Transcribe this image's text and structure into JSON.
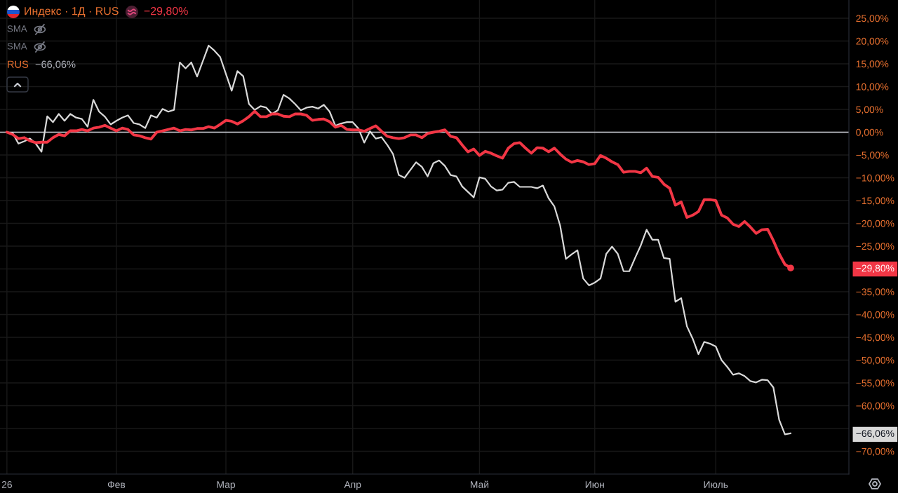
{
  "chart_data": {
    "type": "line",
    "categories": [
      "26",
      null,
      null,
      null,
      null,
      null,
      null,
      null,
      null,
      null,
      null,
      null,
      null,
      null,
      null,
      null,
      null,
      null,
      null,
      "Фев",
      null,
      null,
      null,
      null,
      null,
      null,
      null,
      null,
      null,
      null,
      null,
      null,
      null,
      null,
      null,
      null,
      null,
      null,
      "Мар",
      null,
      null,
      null,
      null,
      null,
      null,
      null,
      null,
      null,
      null,
      null,
      null,
      null,
      null,
      null,
      null,
      null,
      null,
      null,
      null,
      null,
      "Апр",
      null,
      null,
      null,
      null,
      null,
      null,
      null,
      null,
      null,
      null,
      null,
      null,
      null,
      null,
      null,
      null,
      null,
      null,
      null,
      null,
      null,
      "Май",
      null,
      null,
      null,
      null,
      null,
      null,
      null,
      null,
      null,
      null,
      null,
      null,
      null,
      null,
      null,
      null,
      null,
      null,
      null,
      "Июн",
      null,
      null,
      null,
      null,
      null,
      null,
      null,
      null,
      null,
      null,
      null,
      null,
      null,
      null,
      null,
      null,
      null,
      null,
      null,
      null,
      "Июль",
      null,
      null,
      null,
      null,
      null,
      null,
      null,
      null,
      null,
      null,
      null,
      null,
      null
    ],
    "ylim": [
      -75,
      29
    ],
    "yticks": [
      {
        "value": 25,
        "label": "25,00%"
      },
      {
        "value": 20,
        "label": "20,00%"
      },
      {
        "value": 15,
        "label": "15,00%"
      },
      {
        "value": 10,
        "label": "10,00%"
      },
      {
        "value": 5,
        "label": "5,00%"
      },
      {
        "value": 0,
        "label": "0,00%"
      },
      {
        "value": -5,
        "label": "−5,00%"
      },
      {
        "value": -10,
        "label": "−10,00%"
      },
      {
        "value": -15,
        "label": "−15,00%"
      },
      {
        "value": -20,
        "label": "−20,00%"
      },
      {
        "value": -25,
        "label": "−25,00%"
      },
      {
        "value": -29.8,
        "label": "−29,80%"
      },
      {
        "value": -30,
        "label": null
      },
      {
        "value": -35,
        "label": "−35,00%"
      },
      {
        "value": -40,
        "label": "−40,00%"
      },
      {
        "value": -45,
        "label": "−45,00%"
      },
      {
        "value": -50,
        "label": "−50,00%"
      },
      {
        "value": -55,
        "label": "−55,00%"
      },
      {
        "value": -60,
        "label": "−60,00%"
      },
      {
        "value": -65,
        "label": null
      },
      {
        "value": -66.06,
        "label": "−66,06%"
      },
      {
        "value": -70,
        "label": "−70,00%"
      }
    ],
    "grid": true,
    "ref_lines": [
      {
        "axis": "y",
        "value": 0,
        "color": "#d1d4dc"
      }
    ],
    "annotations": [
      "Индекс · 1Д · RUS",
      "−29,80%",
      "SMA",
      "SMA",
      "RUS",
      "−66,06%"
    ],
    "series": [
      {
        "color": "#d9d9d9",
        "values": [
          0,
          -0.2,
          -2.5,
          -2.0,
          -1.4,
          -2.5,
          -4.3,
          3.5,
          2.2,
          4.0,
          2.5,
          4.0,
          3.2,
          2.9,
          1.2,
          7.1,
          4.5,
          3.4,
          1.7,
          2.5,
          3.2,
          3.7,
          2.0,
          1.7,
          0.9,
          3.7,
          3.2,
          5.1,
          4.5,
          4.9,
          15.3,
          14.0,
          15.3,
          12.2,
          15.6,
          19.0,
          17.9,
          16.5,
          12.8,
          9.1,
          13.4,
          12.3,
          6.2,
          4.9,
          5.7,
          5.4,
          4.0,
          4.8,
          8.2,
          7.4,
          6.2,
          4.8,
          5.4,
          5.6,
          5.2,
          6.0,
          4.5,
          1.4,
          1.9,
          2.2,
          2.2,
          0.8,
          -2.3,
          0.2,
          -1.4,
          -1.1,
          -2.8,
          -4.8,
          -9.4,
          -10.0,
          -8.3,
          -6.6,
          -7.6,
          -9.7,
          -6.8,
          -6.2,
          -7.4,
          -9.4,
          -9.7,
          -11.9,
          -13.1,
          -14.3,
          -9.9,
          -10.2,
          -11.9,
          -12.8,
          -12.6,
          -11.1,
          -10.9,
          -12.0,
          -12.0,
          -12.0,
          -12.3,
          -11.7,
          -14.5,
          -16.3,
          -20.5,
          -27.8,
          -26.8,
          -25.9,
          -32.1,
          -33.6,
          -33.0,
          -32.1,
          -26.7,
          -25.1,
          -26.7,
          -30.5,
          -30.5,
          -27.6,
          -24.8,
          -21.4,
          -23.6,
          -23.6,
          -27.6,
          -27.8,
          -37.2,
          -36.4,
          -42.6,
          -45.3,
          -48.7,
          -46.0,
          -46.4,
          -47.0,
          -50.0,
          -51.5,
          -53.2,
          -52.9,
          -53.5,
          -54.6,
          -54.9,
          -54.3,
          -54.4,
          -56.0,
          -63.1,
          -66.3,
          -66.06
        ]
      },
      {
        "color": "#f23645",
        "values": [
          0,
          -0.5,
          -1.4,
          -1.2,
          -1.9,
          -2.3,
          -2.2,
          -2.2,
          -1.2,
          -0.5,
          -0.8,
          0.3,
          0.3,
          0.6,
          0.3,
          0.9,
          1.1,
          1.5,
          0.9,
          0.3,
          0.9,
          0.6,
          -0.6,
          -0.8,
          -1.2,
          -1.5,
          0.0,
          0.3,
          0.6,
          0.9,
          0.3,
          0.6,
          0.5,
          0.8,
          0.8,
          1.2,
          0.9,
          1.7,
          2.6,
          2.4,
          1.8,
          2.5,
          3.4,
          4.6,
          3.4,
          3.4,
          4.0,
          4.0,
          3.5,
          3.4,
          4.0,
          4.0,
          3.7,
          2.6,
          2.8,
          2.9,
          2.3,
          1.1,
          1.5,
          0.6,
          0.5,
          0.5,
          0.2,
          0.8,
          1.4,
          0.2,
          -0.9,
          -1.2,
          -1.4,
          -1.2,
          -0.6,
          -0.6,
          -1.2,
          -0.3,
          0.0,
          0.2,
          0.5,
          -0.9,
          -1.2,
          -2.8,
          -4.3,
          -3.7,
          -5.1,
          -4.2,
          -4.6,
          -5.2,
          -5.7,
          -3.5,
          -2.5,
          -2.3,
          -3.5,
          -4.6,
          -3.4,
          -3.5,
          -4.3,
          -3.5,
          -4.8,
          -5.9,
          -6.6,
          -6.2,
          -6.5,
          -7.1,
          -6.9,
          -5.1,
          -5.7,
          -6.5,
          -7.1,
          -8.8,
          -8.6,
          -8.6,
          -8.9,
          -7.9,
          -9.7,
          -9.9,
          -11.4,
          -12.3,
          -16.0,
          -15.3,
          -18.7,
          -18.2,
          -17.4,
          -14.8,
          -14.8,
          -15.0,
          -18.2,
          -18.8,
          -20.2,
          -20.7,
          -19.6,
          -20.8,
          -22.2,
          -21.4,
          -21.3,
          -23.8,
          -26.7,
          -29.0,
          -29.8
        ]
      },
      {
        "type": "scatter",
        "color": "#f23645",
        "values": [
          null,
          null,
          null,
          null,
          null,
          null,
          null,
          null,
          null,
          null,
          null,
          null,
          null,
          null,
          null,
          null,
          null,
          null,
          null,
          null,
          null,
          null,
          null,
          null,
          null,
          null,
          null,
          null,
          null,
          null,
          null,
          null,
          null,
          null,
          null,
          null,
          null,
          null,
          null,
          null,
          null,
          null,
          null,
          null,
          null,
          null,
          null,
          null,
          null,
          null,
          null,
          null,
          null,
          null,
          null,
          null,
          null,
          null,
          null,
          null,
          null,
          null,
          null,
          null,
          null,
          null,
          null,
          null,
          null,
          null,
          null,
          null,
          null,
          null,
          null,
          null,
          null,
          null,
          null,
          null,
          null,
          null,
          null,
          null,
          null,
          null,
          null,
          null,
          null,
          null,
          null,
          null,
          null,
          null,
          null,
          null,
          null,
          null,
          null,
          null,
          null,
          null,
          null,
          null,
          null,
          null,
          null,
          null,
          null,
          null,
          null,
          null,
          null,
          null,
          null,
          null,
          null,
          null,
          null,
          null,
          null,
          null,
          null,
          null,
          null,
          null,
          null,
          null,
          null,
          null,
          null,
          null,
          null,
          null,
          null,
          null,
          -29.8
        ]
      }
    ]
  }
}
